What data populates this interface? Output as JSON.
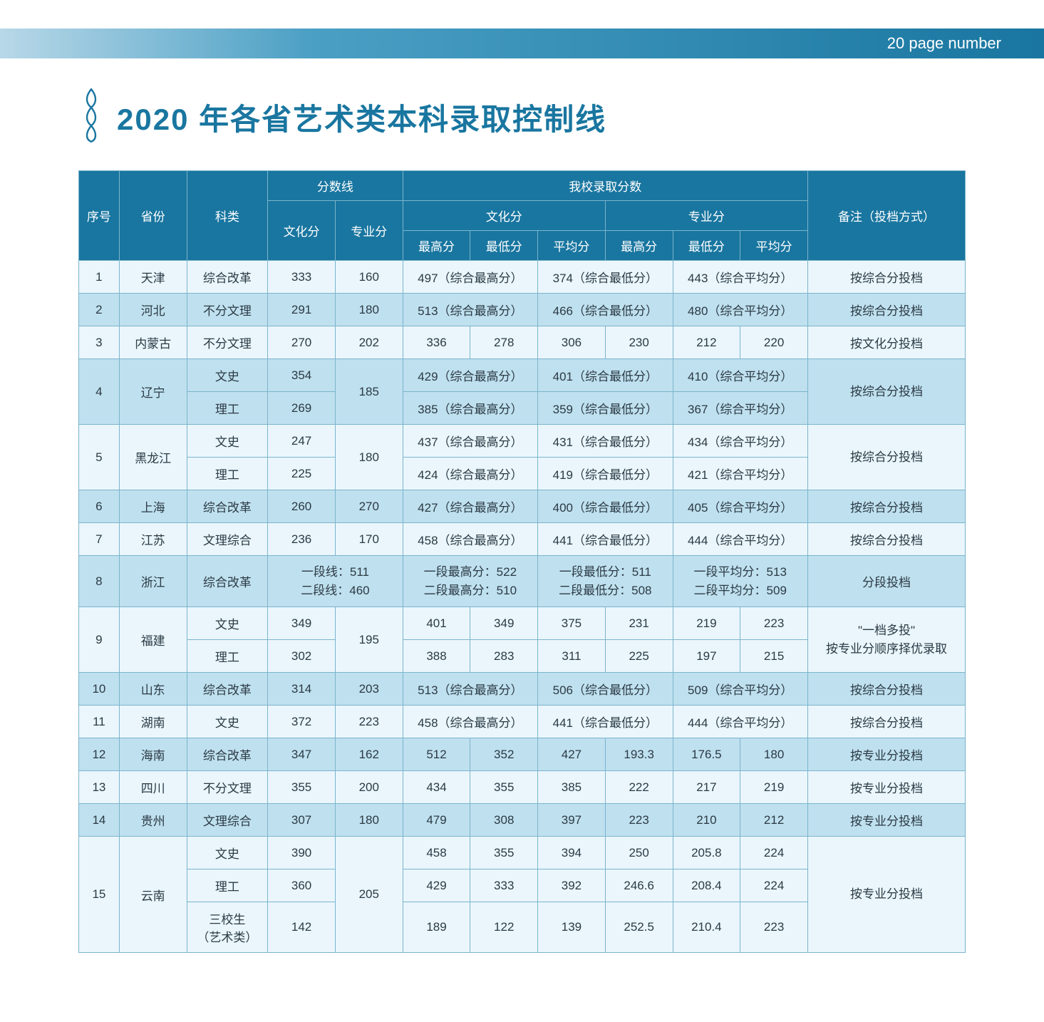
{
  "page_label": "20 page number",
  "title": "2020 年各省艺术类本科录取控制线",
  "colors": {
    "header_gradient_start": "#b8d8e8",
    "header_gradient_mid": "#4a9fc4",
    "header_gradient_end": "#1976a0",
    "title_color": "#1976a0",
    "th_bg": "#1976a0",
    "row_odd": "#eaf6fc",
    "row_even": "#bfe0ef",
    "border": "#7bb5cc"
  },
  "headers": {
    "idx": "序号",
    "province": "省份",
    "type": "科类",
    "score_line": "分数线",
    "culture_score": "文化分",
    "major_score": "专业分",
    "our_admit": "我校录取分数",
    "culture": "文化分",
    "major": "专业分",
    "max": "最高分",
    "min": "最低分",
    "avg": "平均分",
    "remark": "备注（投档方式）"
  },
  "rows": [
    {
      "idx": "1",
      "prov": "天津",
      "type": "综合改革",
      "cul": "333",
      "maj": "160",
      "c_max": "497（综合最高分）",
      "c_min": null,
      "c_avg": "374（综合最低分）",
      "m_max": null,
      "m_min": "443（综合平均分）",
      "m_avg": null,
      "remark": "按综合分投档",
      "merge": "span2",
      "parity": "odd"
    },
    {
      "idx": "2",
      "prov": "河北",
      "type": "不分文理",
      "cul": "291",
      "maj": "180",
      "c_max": "513（综合最高分）",
      "c_avg": "466（综合最低分）",
      "m_min": "480（综合平均分）",
      "remark": "按综合分投档",
      "merge": "span2",
      "parity": "even"
    },
    {
      "idx": "3",
      "prov": "内蒙古",
      "type": "不分文理",
      "cul": "270",
      "maj": "202",
      "c_max": "336",
      "c_min": "278",
      "c_avg": "306",
      "m_max": "230",
      "m_min": "212",
      "m_avg": "220",
      "remark": "按文化分投档",
      "parity": "odd"
    },
    {
      "idx": "4",
      "prov": "辽宁",
      "types": [
        "文史",
        "理工"
      ],
      "culs": [
        "354",
        "269"
      ],
      "maj": "185",
      "sub": [
        {
          "c_max": "429（综合最高分）",
          "c_avg": "401（综合最低分）",
          "m_min": "410（综合平均分）",
          "merge": "span2"
        },
        {
          "c_max": "385（综合最高分）",
          "c_avg": "359（综合最低分）",
          "m_min": "367（综合平均分）",
          "merge": "span2"
        }
      ],
      "remark": "按综合分投档",
      "parity": "even"
    },
    {
      "idx": "5",
      "prov": "黑龙江",
      "types": [
        "文史",
        "理工"
      ],
      "culs": [
        "247",
        "225"
      ],
      "maj": "180",
      "sub": [
        {
          "c_max": "437（综合最高分）",
          "c_avg": "431（综合最低分）",
          "m_min": "434（综合平均分）",
          "merge": "span2"
        },
        {
          "c_max": "424（综合最高分）",
          "c_avg": "419（综合最低分）",
          "m_min": "421（综合平均分）",
          "merge": "span2"
        }
      ],
      "remark": "按综合分投档",
      "parity": "odd"
    },
    {
      "idx": "6",
      "prov": "上海",
      "type": "综合改革",
      "cul": "260",
      "maj": "270",
      "c_max": "427（综合最高分）",
      "c_avg": "400（综合最低分）",
      "m_min": "405（综合平均分）",
      "remark": "按综合分投档",
      "merge": "span2",
      "parity": "even"
    },
    {
      "idx": "7",
      "prov": "江苏",
      "type": "文理综合",
      "cul": "236",
      "maj": "170",
      "c_max": "458（综合最高分）",
      "c_avg": "441（综合最低分）",
      "m_min": "444（综合平均分）",
      "remark": "按综合分投档",
      "merge": "span2",
      "parity": "odd"
    },
    {
      "idx": "8",
      "prov": "浙江",
      "type": "综合改革",
      "cul_merged": "一段线：511\n二段线：460",
      "c_merged": "一段最高分：522\n二段最高分：510",
      "a_merged": "一段最低分：511\n二段最低分：508",
      "m_merged": "一段平均分：513\n二段平均分：509",
      "remark": "分段投档",
      "parity": "even",
      "special": "zhejiang"
    },
    {
      "idx": "9",
      "prov": "福建",
      "types": [
        "文史",
        "理工"
      ],
      "culs": [
        "349",
        "302"
      ],
      "maj": "195",
      "sub": [
        {
          "c_max": "401",
          "c_min": "349",
          "c_avg": "375",
          "m_max": "231",
          "m_min": "219",
          "m_avg": "223"
        },
        {
          "c_max": "388",
          "c_min": "283",
          "c_avg": "311",
          "m_max": "225",
          "m_min": "197",
          "m_avg": "215"
        }
      ],
      "remark": "\"一档多投\"\n按专业分顺序择优录取",
      "parity": "odd"
    },
    {
      "idx": "10",
      "prov": "山东",
      "type": "综合改革",
      "cul": "314",
      "maj": "203",
      "c_max": "513（综合最高分）",
      "c_avg": "506（综合最低分）",
      "m_min": "509（综合平均分）",
      "remark": "按综合分投档",
      "merge": "span2",
      "parity": "even"
    },
    {
      "idx": "11",
      "prov": "湖南",
      "type": "文史",
      "cul": "372",
      "maj": "223",
      "c_max": "458（综合最高分）",
      "c_avg": "441（综合最低分）",
      "m_min": "444（综合平均分）",
      "remark": "按综合分投档",
      "merge": "span2",
      "parity": "odd"
    },
    {
      "idx": "12",
      "prov": "海南",
      "type": "综合改革",
      "cul": "347",
      "maj": "162",
      "c_max": "512",
      "c_min": "352",
      "c_avg": "427",
      "m_max": "193.3",
      "m_min": "176.5",
      "m_avg": "180",
      "remark": "按专业分投档",
      "parity": "even"
    },
    {
      "idx": "13",
      "prov": "四川",
      "type": "不分文理",
      "cul": "355",
      "maj": "200",
      "c_max": "434",
      "c_min": "355",
      "c_avg": "385",
      "m_max": "222",
      "m_min": "217",
      "m_avg": "219",
      "remark": "按专业分投档",
      "parity": "odd"
    },
    {
      "idx": "14",
      "prov": "贵州",
      "type": "文理综合",
      "cul": "307",
      "maj": "180",
      "c_max": "479",
      "c_min": "308",
      "c_avg": "397",
      "m_max": "223",
      "m_min": "210",
      "m_avg": "212",
      "remark": "按专业分投档",
      "parity": "even"
    },
    {
      "idx": "15",
      "prov": "云南",
      "types": [
        "文史",
        "理工",
        "三校生\n（艺术类）"
      ],
      "culs": [
        "390",
        "360",
        "142"
      ],
      "maj": "205",
      "sub": [
        {
          "c_max": "458",
          "c_min": "355",
          "c_avg": "394",
          "m_max": "250",
          "m_min": "205.8",
          "m_avg": "224"
        },
        {
          "c_max": "429",
          "c_min": "333",
          "c_avg": "392",
          "m_max": "246.6",
          "m_min": "208.4",
          "m_avg": "224"
        },
        {
          "c_max": "189",
          "c_min": "122",
          "c_avg": "139",
          "m_max": "252.5",
          "m_min": "210.4",
          "m_avg": "223"
        }
      ],
      "remark": "按专业分投档",
      "parity": "odd"
    }
  ]
}
